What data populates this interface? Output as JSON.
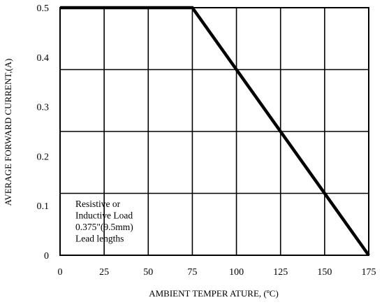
{
  "chart_data": {
    "type": "line",
    "title": "",
    "xlabel": "AMBIENT TEMPER ATURE, (ºC)",
    "ylabel": "AVERAGE FORWARD CURRENT,(A)",
    "xlim": [
      0,
      175
    ],
    "ylim": [
      0,
      0.5
    ],
    "x_ticks": [
      "0",
      "25",
      "50",
      "75",
      "100",
      "125",
      "150",
      "175"
    ],
    "y_ticks": [
      "0",
      "0.1",
      "0.2",
      "0.3",
      "0.4",
      "0.5"
    ],
    "x_grid_values": [
      0,
      25,
      50,
      75,
      100,
      125,
      150,
      175
    ],
    "y_grid_values": [
      0,
      0.125,
      0.25,
      0.375,
      0.5
    ],
    "grid": true,
    "series": [
      {
        "x": [
          0,
          75,
          175
        ],
        "y": [
          0.5,
          0.5,
          0
        ]
      }
    ],
    "annotation": {
      "lines": [
        "Resistive or",
        "Inductive Load",
        "0.375\"(9.5mm)",
        "Lead lengths"
      ]
    }
  },
  "colors": {
    "line": "#000000",
    "grid": "#000000",
    "background": "#ffffff"
  }
}
